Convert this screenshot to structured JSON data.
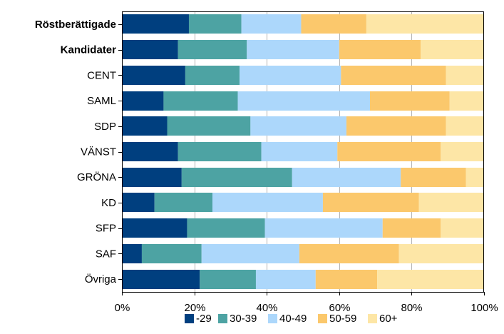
{
  "chart_data": {
    "type": "bar",
    "orientation": "horizontal",
    "stacked": "percent",
    "categories": [
      "Röstberättigade",
      "Kandidater",
      "CENT",
      "SAML",
      "SDP",
      "VÄNST",
      "GRÖNA",
      "KD",
      "SFP",
      "SAF",
      "Övriga"
    ],
    "bold_categories": [
      "Röstberättigade",
      "Kandidater"
    ],
    "series": [
      {
        "name": "-29",
        "color": "#003f7f",
        "values": [
          18.5,
          15.5,
          17.5,
          11.5,
          12.5,
          15.5,
          16.5,
          9.0,
          18.0,
          5.5,
          21.5
        ]
      },
      {
        "name": "30-39",
        "color": "#4da3a3",
        "values": [
          14.5,
          19.0,
          15.0,
          20.5,
          23.0,
          23.0,
          30.5,
          16.0,
          21.5,
          16.5,
          15.5
        ]
      },
      {
        "name": "40-49",
        "color": "#acd7fb",
        "values": [
          16.5,
          25.5,
          28.0,
          36.5,
          26.5,
          21.0,
          30.0,
          30.5,
          32.5,
          27.0,
          16.5
        ]
      },
      {
        "name": "50-59",
        "color": "#fbc86c",
        "values": [
          18.0,
          22.5,
          29.0,
          22.0,
          27.5,
          28.5,
          18.0,
          26.5,
          16.0,
          27.5,
          17.0
        ]
      },
      {
        "name": "60+",
        "color": "#fde6a6",
        "values": [
          32.5,
          17.5,
          10.5,
          9.5,
          10.5,
          12.0,
          5.0,
          18.0,
          12.0,
          23.5,
          29.5
        ]
      }
    ],
    "x_ticks": [
      "0%",
      "20%",
      "40%",
      "60%",
      "80%",
      "100%"
    ],
    "xlim": [
      0,
      100
    ],
    "grid": true,
    "legend_position": "bottom"
  }
}
